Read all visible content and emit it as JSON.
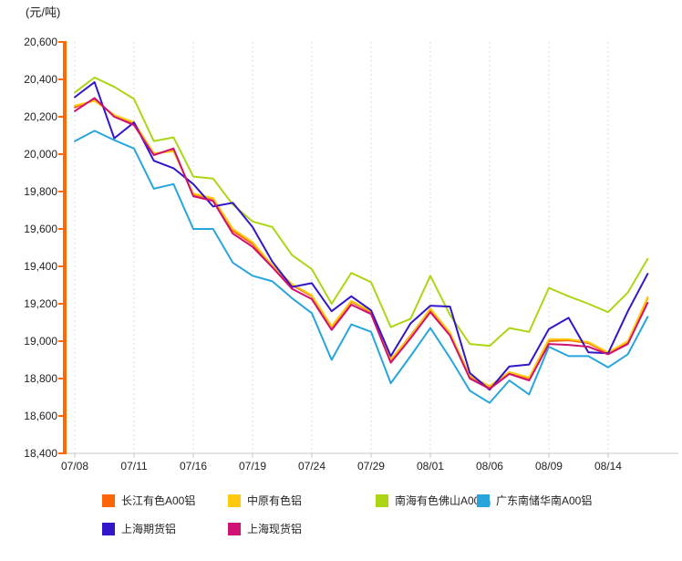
{
  "chart_data": {
    "type": "line",
    "unit_label": "(元/吨)",
    "ylim": [
      18400,
      20600
    ],
    "ytick_step": 200,
    "ytick_labels": [
      "18,400",
      "18,600",
      "18,800",
      "19,000",
      "19,200",
      "19,400",
      "19,600",
      "19,800",
      "20,000",
      "20,200",
      "20,400",
      "20,600"
    ],
    "x_tick_labels": [
      "07/08",
      "07/11",
      "07/16",
      "07/19",
      "07/24",
      "07/29",
      "08/01",
      "08/06",
      "08/09",
      "08/14"
    ],
    "num_points": 30,
    "label_every": 3,
    "grid": "vertical-dotted",
    "legend_position": "bottom",
    "axis_color": "#ff6a00",
    "x_axis_color": "#c8c8c8",
    "gridline_color": "#dcdcdc",
    "text_color": "#222222",
    "series": [
      {
        "name": "长江有色A00铝",
        "color": "#fc6608",
        "values": [
          20250,
          20290,
          20205,
          20165,
          20000,
          20020,
          19785,
          19760,
          19590,
          19520,
          19400,
          19300,
          19240,
          19075,
          19210,
          19155,
          18900,
          19030,
          19170,
          19040,
          18810,
          18755,
          18830,
          18800,
          19000,
          19005,
          18990,
          18935,
          18995,
          19230
        ]
      },
      {
        "name": "中原有色铝",
        "color": "#ffc90e",
        "values": [
          20260,
          20285,
          20210,
          20170,
          20005,
          20015,
          19790,
          19765,
          19600,
          19530,
          19405,
          19305,
          19245,
          19080,
          19215,
          19160,
          18905,
          19025,
          19175,
          19045,
          18815,
          18760,
          18835,
          18805,
          19010,
          19010,
          18995,
          18940,
          19000,
          19235
        ]
      },
      {
        "name": "南海有色佛山A00铝",
        "color": "#acd613",
        "values": [
          20330,
          20410,
          20360,
          20295,
          20070,
          20090,
          19880,
          19870,
          19730,
          19640,
          19610,
          19460,
          19385,
          19200,
          19365,
          19315,
          19075,
          19120,
          19350,
          19140,
          18985,
          18975,
          19070,
          19050,
          19285,
          19240,
          19200,
          19155,
          19260,
          19440
        ]
      },
      {
        "name": "广东南储华南A00铝",
        "color": "#27a5dc",
        "values": [
          20070,
          20125,
          20075,
          20030,
          19815,
          19840,
          19600,
          19600,
          19420,
          19350,
          19320,
          19230,
          19150,
          18900,
          19090,
          19050,
          18775,
          18920,
          19070,
          18910,
          18735,
          18670,
          18790,
          18715,
          18970,
          18920,
          18920,
          18860,
          18930,
          19130
        ]
      },
      {
        "name": "上海期货铝",
        "color": "#3216c9",
        "values": [
          20305,
          20385,
          20085,
          20170,
          19965,
          19925,
          19840,
          19720,
          19740,
          19610,
          19425,
          19290,
          19310,
          19160,
          19240,
          19165,
          18920,
          19095,
          19190,
          19185,
          18830,
          18740,
          18865,
          18875,
          19065,
          19125,
          18940,
          18935,
          19160,
          19360
        ]
      },
      {
        "name": "上海现货铝",
        "color": "#ce1172",
        "values": [
          20230,
          20300,
          20200,
          20155,
          19995,
          20030,
          19775,
          19750,
          19575,
          19505,
          19395,
          19280,
          19225,
          19060,
          19195,
          19145,
          18885,
          19015,
          19155,
          19030,
          18800,
          18745,
          18825,
          18790,
          18985,
          18980,
          18970,
          18930,
          18985,
          19205
        ]
      }
    ]
  }
}
